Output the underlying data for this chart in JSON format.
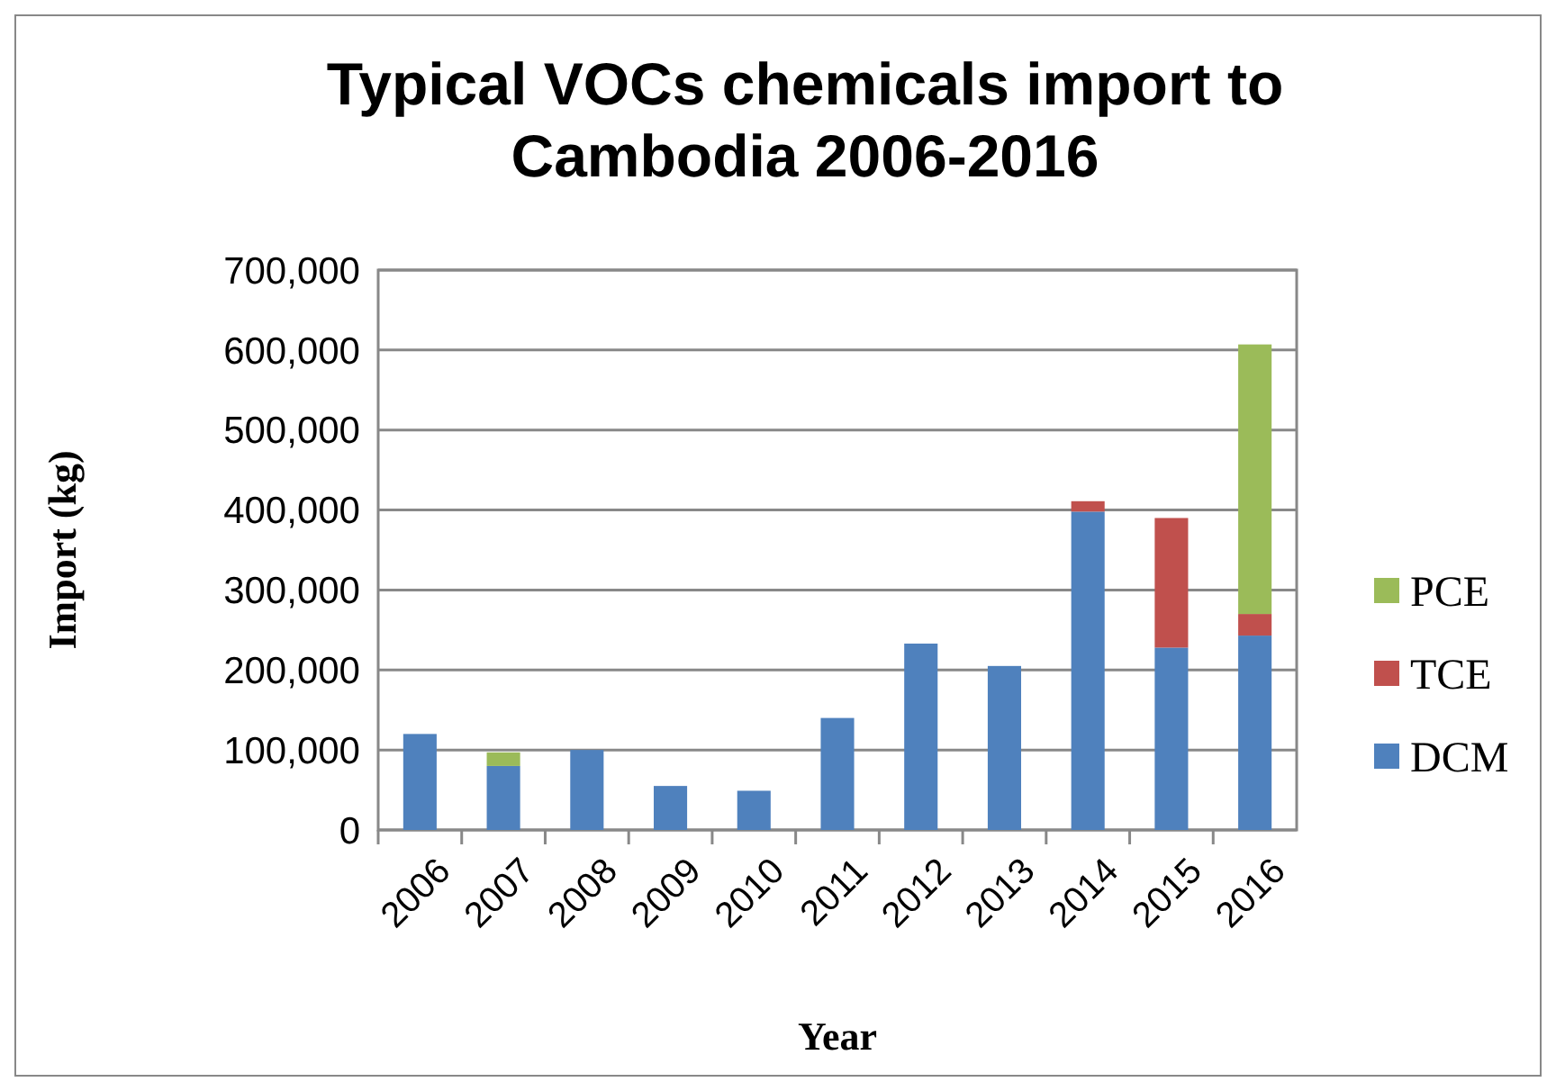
{
  "chart_data": {
    "type": "bar",
    "title": "Typical VOCs chemicals import to Cambodia 2006-2016",
    "xlabel": "Year",
    "ylabel": "Import (kg)",
    "categories": [
      "2006",
      "2007",
      "2008",
      "2009",
      "2010",
      "2011",
      "2012",
      "2013",
      "2014",
      "2015",
      "2016"
    ],
    "stacked": true,
    "series": [
      {
        "name": "DCM",
        "color": "#4f81bd",
        "values": [
          120000,
          80000,
          100000,
          55000,
          49000,
          140000,
          233000,
          205000,
          398000,
          228000,
          243000
        ]
      },
      {
        "name": "TCE",
        "color": "#c0504d",
        "values": [
          0,
          0,
          0,
          0,
          0,
          0,
          0,
          0,
          13000,
          162000,
          27000
        ]
      },
      {
        "name": "PCE",
        "color": "#9bbb59",
        "values": [
          0,
          17000,
          0,
          0,
          0,
          0,
          0,
          0,
          0,
          0,
          337000
        ]
      }
    ],
    "ylim": [
      0,
      700000
    ],
    "yticks": [
      {
        "value": 0,
        "label": "0"
      },
      {
        "value": 100000,
        "label": "100,000"
      },
      {
        "value": 200000,
        "label": "200,000"
      },
      {
        "value": 300000,
        "label": "300,000"
      },
      {
        "value": 400000,
        "label": "400,000"
      },
      {
        "value": 500000,
        "label": "500,000"
      },
      {
        "value": 600000,
        "label": "600,000"
      },
      {
        "value": 700000,
        "label": "700,000"
      }
    ],
    "grid": "y",
    "legend": "right"
  }
}
